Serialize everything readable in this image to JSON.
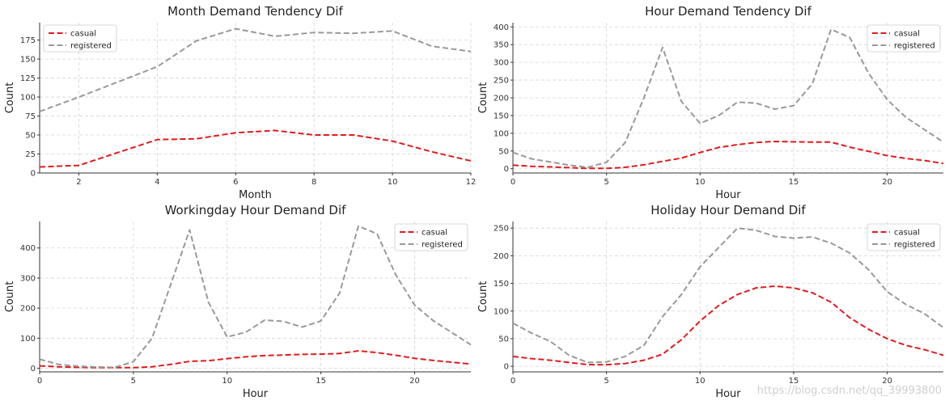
{
  "colors": {
    "casual": "#e31a1c",
    "registered": "#999999"
  },
  "watermark": "https://blog.csdn.net/qq_39993800",
  "chart_data": [
    {
      "type": "line",
      "title": "Month Demand Tendency Dif",
      "xlabel": "Month",
      "ylabel": "Count",
      "x": [
        1,
        2,
        3,
        4,
        5,
        6,
        7,
        8,
        9,
        10,
        11,
        12
      ],
      "xlim": [
        1,
        12
      ],
      "ylim": [
        0,
        198
      ],
      "xticks": [
        2,
        4,
        6,
        8,
        10,
        12
      ],
      "yticks": [
        0,
        25,
        50,
        75,
        100,
        125,
        150,
        175
      ],
      "grid": true,
      "legend": "top-left",
      "series": [
        {
          "name": "casual",
          "values": [
            8,
            10,
            27,
            44,
            45,
            53,
            56,
            50,
            50,
            42,
            28,
            16
          ]
        },
        {
          "name": "registered",
          "values": [
            81,
            100,
            120,
            140,
            174,
            190,
            180,
            185,
            184,
            187,
            167,
            160
          ]
        }
      ]
    },
    {
      "type": "line",
      "title": "Hour Demand Tendency Dif",
      "xlabel": "Hour",
      "ylabel": "Count",
      "x": [
        0,
        1,
        2,
        3,
        4,
        5,
        6,
        7,
        8,
        9,
        10,
        11,
        12,
        13,
        14,
        15,
        16,
        17,
        18,
        19,
        20,
        21,
        22,
        23
      ],
      "xlim": [
        0,
        23
      ],
      "ylim": [
        -12,
        412
      ],
      "xticks": [
        0,
        5,
        10,
        15,
        20
      ],
      "yticks": [
        0,
        50,
        100,
        150,
        200,
        250,
        300,
        350,
        400
      ],
      "grid": true,
      "legend": "top-right",
      "series": [
        {
          "name": "casual",
          "values": [
            10,
            7,
            5,
            3,
            1,
            1,
            4,
            11,
            21,
            30,
            46,
            60,
            68,
            74,
            77,
            76,
            75,
            75,
            61,
            49,
            37,
            29,
            23,
            15
          ]
        },
        {
          "name": "registered",
          "values": [
            46,
            28,
            19,
            10,
            4,
            18,
            74,
            200,
            342,
            190,
            128,
            150,
            188,
            185,
            168,
            178,
            240,
            393,
            370,
            270,
            195,
            145,
            110,
            75
          ]
        }
      ]
    },
    {
      "type": "line",
      "title": "Workingday Hour Demand Dif",
      "xlabel": "Hour",
      "ylabel": "Count",
      "x": [
        0,
        1,
        2,
        3,
        4,
        5,
        6,
        7,
        8,
        9,
        10,
        11,
        12,
        13,
        14,
        15,
        16,
        17,
        18,
        19,
        20,
        21,
        22,
        23
      ],
      "xlim": [
        0,
        23
      ],
      "ylim": [
        -12,
        488
      ],
      "xticks": [
        0,
        5,
        10,
        15,
        20
      ],
      "yticks": [
        0,
        100,
        200,
        300,
        400
      ],
      "grid": true,
      "legend": "top-right",
      "series": [
        {
          "name": "casual",
          "values": [
            8,
            5,
            3,
            2,
            2,
            2,
            5,
            13,
            23,
            25,
            32,
            38,
            42,
            44,
            46,
            47,
            49,
            58,
            52,
            43,
            33,
            26,
            20,
            14
          ]
        },
        {
          "name": "registered",
          "values": [
            30,
            13,
            7,
            4,
            3,
            22,
            100,
            280,
            460,
            220,
            104,
            120,
            160,
            156,
            137,
            157,
            250,
            473,
            447,
            310,
            210,
            158,
            118,
            78
          ]
        }
      ]
    },
    {
      "type": "line",
      "title": "Holiday Hour Demand Dif",
      "xlabel": "Hour",
      "ylabel": "Count",
      "x": [
        0,
        1,
        2,
        3,
        4,
        5,
        6,
        7,
        8,
        9,
        10,
        11,
        12,
        13,
        14,
        15,
        16,
        17,
        18,
        19,
        20,
        21,
        22,
        23
      ],
      "xlim": [
        0,
        23
      ],
      "ylim": [
        -10,
        262
      ],
      "xticks": [
        0,
        5,
        10,
        15,
        20
      ],
      "yticks": [
        0,
        50,
        100,
        150,
        200,
        250
      ],
      "grid": true,
      "legend": "top-right",
      "series": [
        {
          "name": "casual",
          "values": [
            18,
            14,
            11,
            7,
            3,
            3,
            5,
            11,
            22,
            48,
            82,
            110,
            130,
            142,
            145,
            142,
            133,
            116,
            88,
            67,
            50,
            38,
            30,
            20
          ]
        },
        {
          "name": "registered",
          "values": [
            78,
            60,
            45,
            20,
            7,
            8,
            18,
            38,
            90,
            130,
            180,
            215,
            250,
            246,
            235,
            232,
            234,
            223,
            205,
            175,
            135,
            112,
            95,
            70
          ]
        }
      ]
    }
  ]
}
